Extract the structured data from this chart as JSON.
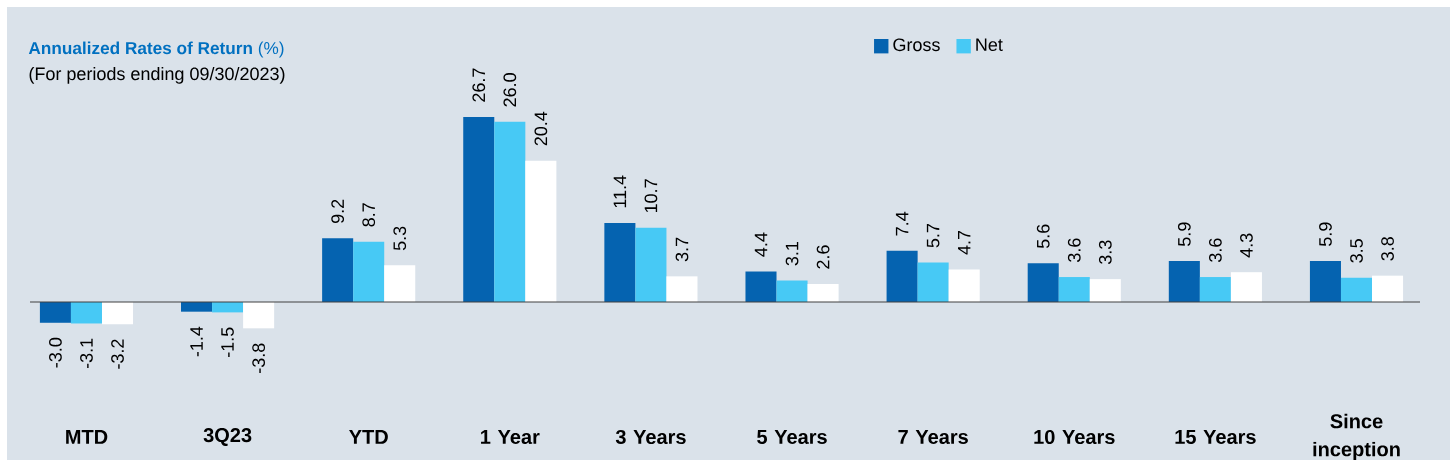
{
  "chart_data": {
    "type": "bar",
    "title": "**Annualized Rates of Return** (%)",
    "subtitle": "(For periods ending 09/30/2023)",
    "categories": [
      "MTD",
      "3Q23",
      "YTD",
      "1 Year",
      "3 Years",
      "5 Years",
      "7 Years",
      "10 Years",
      "15 Years",
      "Since inception"
    ],
    "series": [
      {
        "name": "Gross",
        "color": "#0563b0",
        "values": [
          -3.0,
          -1.4,
          9.2,
          26.7,
          11.4,
          4.4,
          7.4,
          5.6,
          5.9,
          5.9
        ],
        "value_labels": [
          "-3.0",
          "-1.4",
          "9.2",
          "26.7",
          "11.4",
          "4.4",
          "7.4",
          "5.6",
          "5.9",
          "5.9"
        ]
      },
      {
        "name": "Net",
        "color": "#47c9f5",
        "values": [
          -3.1,
          -1.5,
          8.7,
          26.0,
          10.7,
          3.1,
          5.7,
          3.6,
          3.6,
          3.5
        ],
        "value_labels": [
          "-3.1",
          "-1.5",
          "8.7",
          "26.0",
          "10.7",
          "3.1",
          "5.7",
          "3.6",
          "3.6",
          "3.5"
        ]
      },
      {
        "color": "#ffffff",
        "values": [
          -3.2,
          -3.8,
          5.3,
          20.4,
          3.7,
          2.6,
          4.7,
          3.3,
          4.3,
          3.8
        ],
        "value_labels": [
          "-3.2",
          "-3.8",
          "5.3",
          "20.4",
          "3.7",
          "2.6",
          "4.7",
          "3.3",
          "4.3",
          "3.8"
        ]
      }
    ],
    "legend": "top"
  }
}
